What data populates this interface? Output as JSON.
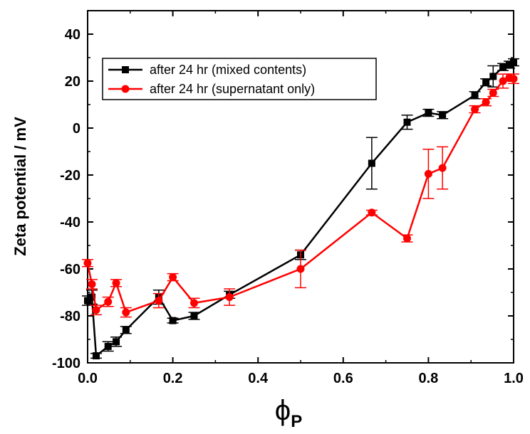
{
  "chart_data": {
    "type": "line",
    "title": "",
    "xlabel": "ϕ",
    "xlabel_subscript": "P",
    "ylabel": "Zeta potential / mV",
    "xlim": [
      0.0,
      1.0
    ],
    "ylim": [
      -100,
      50
    ],
    "x_ticks": [
      0.0,
      0.2,
      0.4,
      0.6,
      0.8,
      1.0
    ],
    "x_tick_labels": [
      "0.0",
      "0.2",
      "0.4",
      "0.6",
      "0.8",
      "1.0"
    ],
    "y_ticks": [
      -100,
      -80,
      -60,
      -40,
      -20,
      0,
      20,
      40
    ],
    "y_tick_labels": [
      "-100",
      "-80",
      "-60",
      "-40",
      "-20",
      "0",
      "20",
      "40"
    ],
    "grid": false,
    "legend_position": "top-left",
    "series": [
      {
        "name": "after 24 hr (mixed contents)",
        "color": "#000000",
        "marker": "square",
        "points": [
          {
            "x": 0.0,
            "y": -73.5,
            "err": 2
          },
          {
            "x": 0.01,
            "y": -72,
            "err": 3
          },
          {
            "x": 0.02,
            "y": -97,
            "err": 1
          },
          {
            "x": 0.048,
            "y": -93,
            "err": 2
          },
          {
            "x": 0.067,
            "y": -91,
            "err": 2
          },
          {
            "x": 0.09,
            "y": -86,
            "err": 1.5
          },
          {
            "x": 0.167,
            "y": -72,
            "err": 3
          },
          {
            "x": 0.2,
            "y": -82,
            "err": 1
          },
          {
            "x": 0.25,
            "y": -80,
            "err": 1.5
          },
          {
            "x": 0.333,
            "y": -71,
            "err": 1.5
          },
          {
            "x": 0.5,
            "y": -54,
            "err": 2
          },
          {
            "x": 0.667,
            "y": -15,
            "err": 11
          },
          {
            "x": 0.75,
            "y": 2.5,
            "err": 3
          },
          {
            "x": 0.8,
            "y": 6.5,
            "err": 1.5
          },
          {
            "x": 0.833,
            "y": 5.5,
            "err": 1.5
          },
          {
            "x": 0.909,
            "y": 14,
            "err": 1.5
          },
          {
            "x": 0.935,
            "y": 19.5,
            "err": 1.5
          },
          {
            "x": 0.952,
            "y": 22,
            "err": 4.5
          },
          {
            "x": 0.975,
            "y": 26,
            "err": 1.5
          },
          {
            "x": 0.99,
            "y": 27,
            "err": 1.5
          },
          {
            "x": 1.0,
            "y": 28,
            "err": 1.5
          }
        ]
      },
      {
        "name": "after 24 hr (supernatant only)",
        "color": "#ff0000",
        "marker": "circle",
        "points": [
          {
            "x": 0.0,
            "y": -57.5,
            "err": 1.5
          },
          {
            "x": 0.01,
            "y": -66.5,
            "err": 2
          },
          {
            "x": 0.02,
            "y": -77.5,
            "err": 2
          },
          {
            "x": 0.048,
            "y": -74,
            "err": 2
          },
          {
            "x": 0.067,
            "y": -66,
            "err": 1.5
          },
          {
            "x": 0.09,
            "y": -78.5,
            "err": 2
          },
          {
            "x": 0.167,
            "y": -73.5,
            "err": 3
          },
          {
            "x": 0.2,
            "y": -63.5,
            "err": 1.5
          },
          {
            "x": 0.25,
            "y": -74.5,
            "err": 2
          },
          {
            "x": 0.333,
            "y": -72,
            "err": 3.5
          },
          {
            "x": 0.5,
            "y": -60,
            "err": 8
          },
          {
            "x": 0.667,
            "y": -36,
            "err": 1
          },
          {
            "x": 0.75,
            "y": -47,
            "err": 1.5
          },
          {
            "x": 0.8,
            "y": -19.5,
            "err": 10.5
          },
          {
            "x": 0.833,
            "y": -17,
            "err": 9
          },
          {
            "x": 0.909,
            "y": 8,
            "err": 1.5
          },
          {
            "x": 0.935,
            "y": 11,
            "err": 1.5
          },
          {
            "x": 0.952,
            "y": 15,
            "err": 1.5
          },
          {
            "x": 0.975,
            "y": 20,
            "err": 3
          },
          {
            "x": 0.99,
            "y": 21.5,
            "err": 1.5
          },
          {
            "x": 1.0,
            "y": 21,
            "err": 2
          }
        ]
      }
    ]
  }
}
